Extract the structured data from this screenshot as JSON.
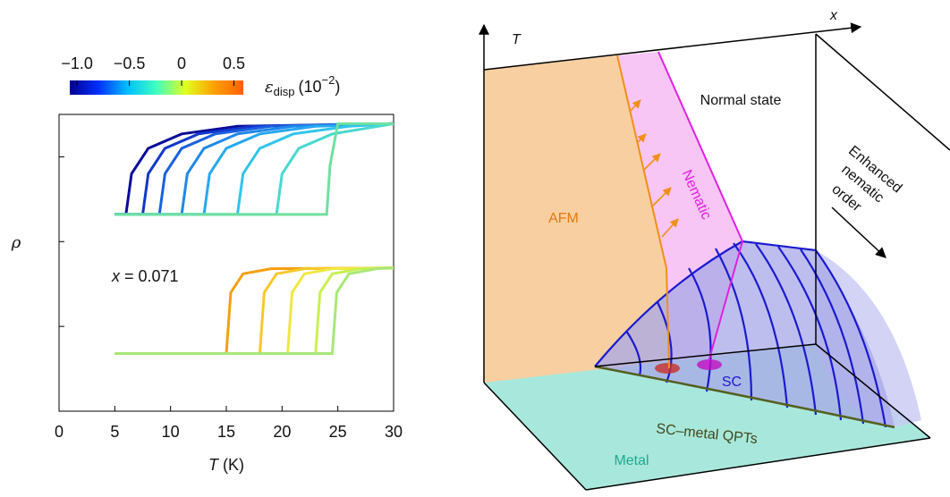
{
  "chart_data": {
    "type": "line",
    "xlabel": {
      "var": "T",
      "unit": "(K)"
    },
    "ylabel": "ρ",
    "annotation": {
      "var": "x",
      "text": "= 0.071"
    },
    "xlim": [
      0,
      30
    ],
    "xticks": [
      0,
      5,
      10,
      15,
      20,
      25,
      30
    ],
    "ylim": [
      0,
      3.5
    ],
    "yticks": [
      1,
      2,
      3
    ],
    "colorbar": {
      "lim": [
        -1.07,
        0.59
      ],
      "ticks": [
        {
          "value": -1,
          "label": "−1.0"
        },
        {
          "value": -0.5,
          "label": "−0.5"
        },
        0,
        0.5
      ],
      "colors": [
        "#00008f",
        "#0030ff",
        "#00c0ff",
        "#40ffc0",
        "#e0ff20",
        "#ffa000",
        "#ff6000"
      ],
      "label": {
        "symbol": "ε",
        "subscript": "disp",
        "unit": "(10",
        "exponent": "−2",
        "close": ")"
      }
    },
    "series": [
      {
        "color": "#0a0a9a",
        "x": [
          5,
          6,
          6.5,
          8,
          11,
          16,
          30
        ],
        "values": [
          2.32,
          2.32,
          2.8,
          3.1,
          3.27,
          3.36,
          3.39
        ]
      },
      {
        "color": "#1238c8",
        "x": [
          5,
          7.5,
          8,
          9.5,
          12.5,
          17.5,
          30
        ],
        "values": [
          2.32,
          2.32,
          2.8,
          3.1,
          3.27,
          3.36,
          3.39
        ]
      },
      {
        "color": "#1a60e0",
        "x": [
          5,
          9,
          9.5,
          11,
          14,
          19,
          30
        ],
        "values": [
          2.32,
          2.32,
          2.8,
          3.1,
          3.27,
          3.36,
          3.39
        ]
      },
      {
        "color": "#1f88e8",
        "x": [
          5,
          11,
          11.5,
          13,
          16,
          21,
          30
        ],
        "values": [
          2.32,
          2.32,
          2.8,
          3.1,
          3.27,
          3.36,
          3.39
        ]
      },
      {
        "color": "#26a8f0",
        "x": [
          5,
          13,
          13.5,
          15,
          18,
          23,
          30
        ],
        "values": [
          2.32,
          2.32,
          2.8,
          3.1,
          3.27,
          3.36,
          3.39
        ]
      },
      {
        "color": "#30c4ec",
        "x": [
          5,
          16,
          16.5,
          18,
          21,
          26,
          30
        ],
        "values": [
          2.32,
          2.32,
          2.8,
          3.1,
          3.27,
          3.36,
          3.39
        ]
      },
      {
        "color": "#48d8d0",
        "x": [
          5,
          19.5,
          20,
          21.5,
          24.5,
          30
        ],
        "values": [
          2.32,
          2.32,
          2.8,
          3.1,
          3.27,
          3.39
        ]
      },
      {
        "color": "#70e0a0",
        "x": [
          5,
          24,
          24.3,
          25,
          30
        ],
        "values": [
          2.32,
          2.32,
          2.9,
          3.39,
          3.39
        ]
      },
      {
        "color": "#f5a010",
        "x": [
          5,
          15,
          15.4,
          16.5,
          19,
          30
        ],
        "values": [
          0.68,
          0.68,
          1.4,
          1.62,
          1.68,
          1.69
        ]
      },
      {
        "color": "#f8c828",
        "x": [
          5,
          18,
          18.4,
          19.5,
          22,
          30
        ],
        "values": [
          0.68,
          0.68,
          1.4,
          1.62,
          1.68,
          1.69
        ]
      },
      {
        "color": "#f0e840",
        "x": [
          5,
          20.5,
          20.9,
          22,
          24.5,
          30
        ],
        "values": [
          0.68,
          0.68,
          1.4,
          1.62,
          1.68,
          1.69
        ]
      },
      {
        "color": "#c8f050",
        "x": [
          5,
          23,
          23.4,
          24.5,
          27,
          30
        ],
        "values": [
          0.68,
          0.68,
          1.4,
          1.62,
          1.68,
          1.69
        ]
      },
      {
        "color": "#a8e878",
        "x": [
          5,
          24.5,
          24.9,
          26,
          28.5,
          30
        ],
        "values": [
          0.68,
          0.68,
          1.4,
          1.62,
          1.68,
          1.69
        ]
      }
    ]
  },
  "diagram": {
    "axis_t": "T",
    "axis_x": "x",
    "normal": "Normal state",
    "afm": "AFM",
    "nematic": "Nematic",
    "enhanced": [
      "Enhanced",
      "nematic",
      "order"
    ],
    "sc": "SC",
    "qpt": "SC–metal QPTs",
    "metal": "Metal"
  }
}
